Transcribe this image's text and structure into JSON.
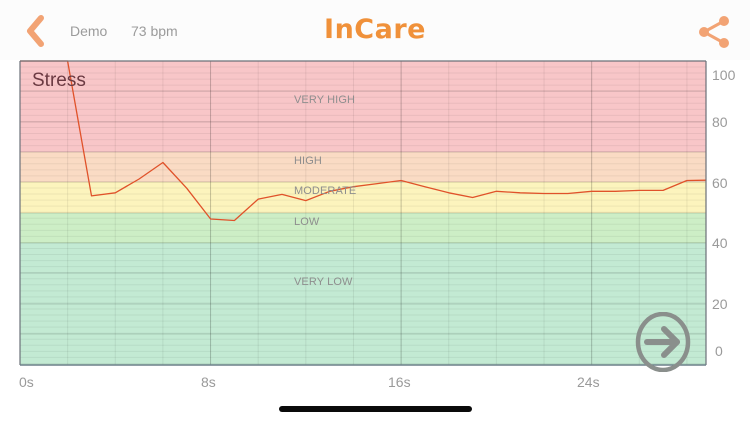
{
  "header": {
    "back_icon": "chevron-left-icon",
    "user_name": "Demo",
    "heart_rate": "73  bpm",
    "app_title": "InCare",
    "share_icon": "share-icon",
    "accent_color": "#f0913a"
  },
  "chart": {
    "title": "Stress",
    "zones": [
      {
        "label": "VERY HIGH",
        "color": "#f8c6c8"
      },
      {
        "label": "HIGH",
        "color": "#fadbc4"
      },
      {
        "label": "MODERATE",
        "color": "#fcf4bd"
      },
      {
        "label": "LOW",
        "color": "#cdeec6"
      },
      {
        "label": "VERY LOW",
        "color": "#c3ead3"
      }
    ],
    "y_ticks": [
      "100",
      "80",
      "60",
      "40",
      "20",
      "0"
    ],
    "x_ticks": [
      "0s",
      "8s",
      "16s",
      "24s"
    ],
    "line_color": "#e0522a",
    "next_icon": "arrow-right-circle-icon"
  },
  "chart_data": {
    "type": "line",
    "title": "Stress",
    "xlabel": "",
    "ylabel": "",
    "x_tick_labels": [
      "0s",
      "8s",
      "16s",
      "24s"
    ],
    "y_tick_labels": [
      "0",
      "20",
      "40",
      "60",
      "80",
      "100"
    ],
    "xlim": [
      0,
      28.8
    ],
    "ylim": [
      0,
      105
    ],
    "grid": true,
    "zones": [
      {
        "label": "VERY LOW",
        "range": [
          0,
          40
        ]
      },
      {
        "label": "LOW",
        "range": [
          40,
          50
        ]
      },
      {
        "label": "MODERATE",
        "range": [
          50,
          60
        ]
      },
      {
        "label": "HIGH",
        "range": [
          60,
          70
        ]
      },
      {
        "label": "VERY HIGH",
        "range": [
          70,
          105
        ]
      }
    ],
    "series": [
      {
        "name": "Stress",
        "x": [
          0,
          2.0,
          3.0,
          4.0,
          5.0,
          6.0,
          7.0,
          8.0,
          9.0,
          10.0,
          11.0,
          12.0,
          13.0,
          14.0,
          15.0,
          16.0,
          17.0,
          18.0,
          19.0,
          20.0,
          21.0,
          22.0,
          23.0,
          24.0,
          25.0,
          26.0,
          27.0,
          28.0,
          28.8
        ],
        "values": [
          105,
          105,
          55.5,
          56.5,
          61,
          66.5,
          58,
          48,
          47.5,
          54.5,
          56,
          54,
          57,
          58.5,
          59.5,
          60.5,
          58.5,
          56.5,
          55,
          57,
          56.5,
          56.3,
          56.3,
          57,
          57,
          57.3,
          57.3,
          60.5,
          60.6
        ]
      }
    ]
  }
}
